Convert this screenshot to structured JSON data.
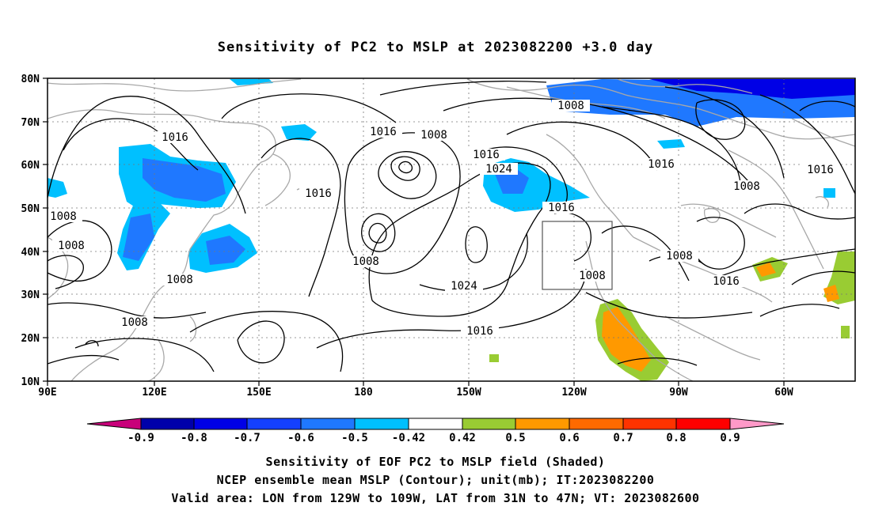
{
  "title": "Sensitivity of PC2 to MSLP at 2023082200 +3.0 day",
  "lat_labels": [
    "80N",
    "70N",
    "60N",
    "50N",
    "40N",
    "30N",
    "20N",
    "10N"
  ],
  "lon_labels": [
    "90E",
    "120E",
    "150E",
    "180",
    "150W",
    "120W",
    "90W",
    "60W"
  ],
  "contour_labels": [
    "1008",
    "1016",
    "1008",
    "1016",
    "1024",
    "1016",
    "1016",
    "1008",
    "1016",
    "1008",
    "1008",
    "1016",
    "1008",
    "1024",
    "1016",
    "1008",
    "1008",
    "1016",
    "1016",
    "1008"
  ],
  "colorbar": {
    "labels": [
      "-0.9",
      "-0.8",
      "-0.7",
      "-0.6",
      "-0.5",
      "-0.42",
      "0.42",
      "0.5",
      "0.6",
      "0.7",
      "0.8",
      "0.9"
    ],
    "colors": [
      "#c8007a",
      "#0000aa",
      "#0000e6",
      "#1440ff",
      "#1f78ff",
      "#00c0ff",
      "#ffffff",
      "#99cc33",
      "#ff9900",
      "#ff6a00",
      "#ff3300",
      "#ff0000",
      "#ff99c8"
    ]
  },
  "captions": [
    "Sensitivity of EOF PC2 to MSLP field (Shaded)",
    "NCEP ensemble mean MSLP (Contour); unit(mb); IT:2023082200",
    "Valid area: LON from 129W to 109W, LAT from 31N to 47N; VT: 2023082600"
  ]
}
